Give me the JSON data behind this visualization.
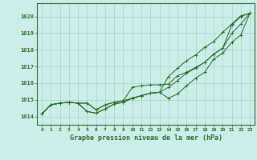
{
  "background_color": "#cceee8",
  "grid_color": "#aad4ce",
  "line_color": "#2d6e2d",
  "xlabel": "Graphe pression niveau de la mer (hPa)",
  "xlim": [
    -0.5,
    23.5
  ],
  "ylim": [
    1013.5,
    1020.8
  ],
  "yticks": [
    1014,
    1015,
    1016,
    1017,
    1018,
    1019,
    1020
  ],
  "xticks": [
    0,
    1,
    2,
    3,
    4,
    5,
    6,
    7,
    8,
    9,
    10,
    11,
    12,
    13,
    14,
    15,
    16,
    17,
    18,
    19,
    20,
    21,
    22,
    23
  ],
  "series1": [
    1014.15,
    1014.7,
    1014.8,
    1014.85,
    1014.8,
    1014.8,
    1014.4,
    1014.7,
    1014.85,
    1014.95,
    1015.75,
    1015.85,
    1015.9,
    1015.9,
    1015.95,
    1016.45,
    1016.65,
    1016.95,
    1017.25,
    1017.75,
    1018.1,
    1019.5,
    1020.0,
    1020.2
  ],
  "series2": [
    1014.15,
    1014.7,
    1014.8,
    1014.85,
    1014.8,
    1014.8,
    1014.4,
    1014.7,
    1014.85,
    1014.95,
    1015.1,
    1015.25,
    1015.4,
    1015.45,
    1015.75,
    1016.15,
    1016.6,
    1016.9,
    1017.25,
    1017.75,
    1018.1,
    1019.0,
    1019.55,
    1020.2
  ],
  "series3": [
    1014.15,
    1014.7,
    1014.8,
    1014.85,
    1014.8,
    1014.3,
    1014.2,
    1014.45,
    1014.75,
    1014.85,
    1015.1,
    1015.25,
    1015.4,
    1015.45,
    1015.1,
    1015.35,
    1015.85,
    1016.3,
    1016.65,
    1017.45,
    1017.8,
    1018.45,
    1018.9,
    1020.2
  ],
  "series4": [
    1014.15,
    1014.7,
    1014.8,
    1014.85,
    1014.8,
    1014.3,
    1014.2,
    1014.45,
    1014.75,
    1014.85,
    1015.1,
    1015.25,
    1015.4,
    1015.45,
    1016.4,
    1016.9,
    1017.35,
    1017.7,
    1018.15,
    1018.5,
    1019.05,
    1019.55,
    1020.05,
    1020.2
  ]
}
